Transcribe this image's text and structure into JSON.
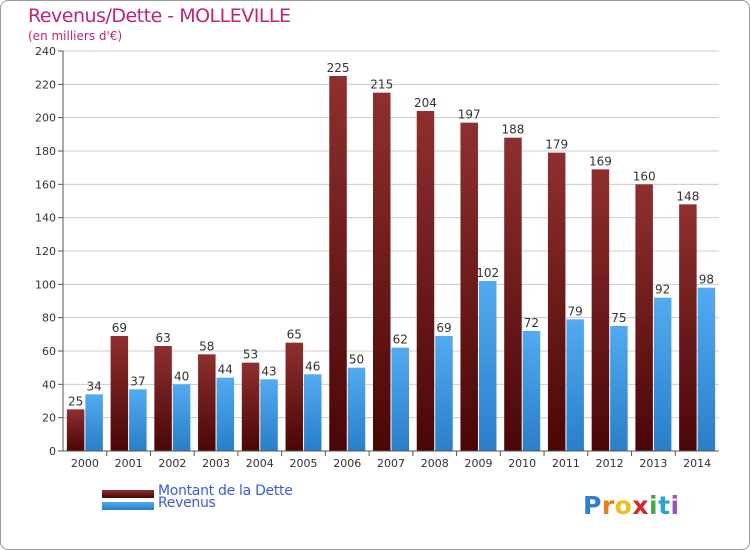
{
  "header": {
    "title": "Revenus/Dette - MOLLEVILLE",
    "subtitle": "(en milliers d'€)"
  },
  "legend": {
    "debt_label": "Montant de la Dette",
    "revenue_label": "Revenus"
  },
  "logo": {
    "letters": [
      "P",
      "r",
      "o",
      "x",
      "i",
      "t",
      "i"
    ],
    "colors": [
      "#2f7fd0",
      "#e87c1e",
      "#e8c21e",
      "#d8262f",
      "#4ba83c",
      "#2aa6c8",
      "#9a55b8"
    ]
  },
  "colors": {
    "debt": "#7a1a1a",
    "revenue": "#3d9be9",
    "grid": "#cccccc",
    "axis_text": "#333333"
  },
  "chart_data": {
    "type": "bar",
    "title": "Revenus/Dette - MOLLEVILLE",
    "subtitle": "(en milliers d'€)",
    "categories": [
      "2000",
      "2001",
      "2002",
      "2003",
      "2004",
      "2005",
      "2006",
      "2007",
      "2008",
      "2009",
      "2010",
      "2011",
      "2012",
      "2013",
      "2014"
    ],
    "series": [
      {
        "name": "Montant de la Dette",
        "values": [
          25,
          69,
          63,
          58,
          53,
          65,
          225,
          215,
          204,
          197,
          188,
          179,
          169,
          160,
          148
        ]
      },
      {
        "name": "Revenus",
        "values": [
          34,
          37,
          40,
          44,
          43,
          46,
          50,
          62,
          69,
          102,
          72,
          79,
          75,
          92,
          98
        ]
      }
    ],
    "ylim": [
      0,
      240
    ],
    "yticks": [
      0,
      20,
      40,
      60,
      80,
      100,
      120,
      140,
      160,
      180,
      200,
      220,
      240
    ],
    "grid": true,
    "legend_position": "bottom-left"
  }
}
